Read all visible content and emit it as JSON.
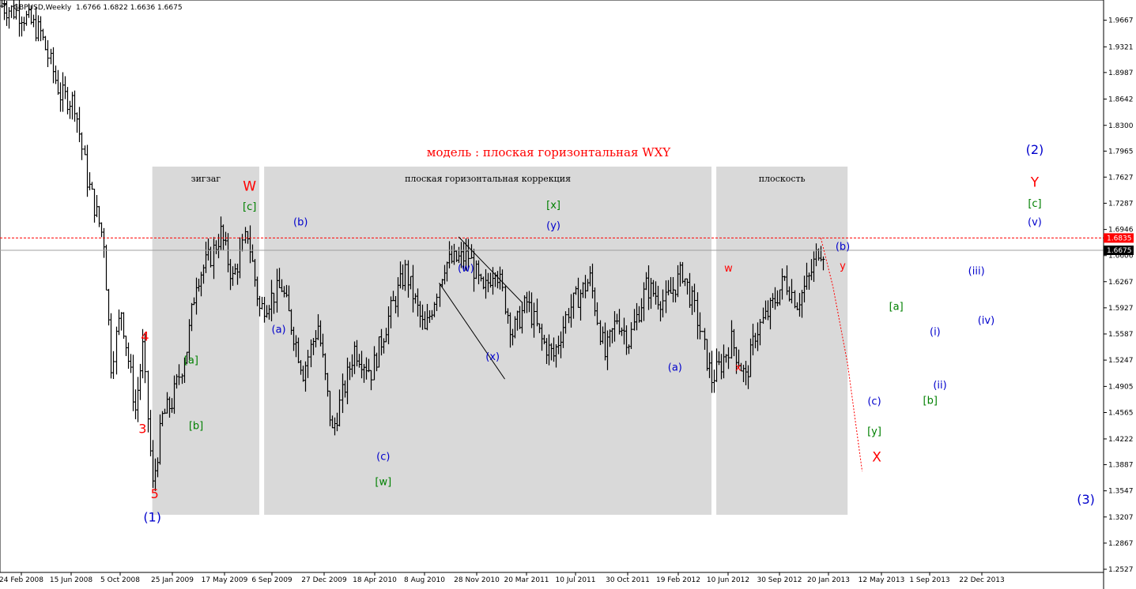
{
  "chart_data": {
    "type": "bar",
    "subtype": "ohlc",
    "title": "модель : плоская горизонтальная WXY",
    "symbol_header": "GBPUSD,Weekly",
    "ohlc_header": "1.6766 1.6822 1.6636 1.6675",
    "ylim": [
      1.2527,
      1.993
    ],
    "y_ticks": [
      "1.9667",
      "1.9321",
      "1.8987",
      "1.8642",
      "1.8300",
      "1.7965",
      "1.7627",
      "1.7287",
      "1.6946",
      "1.6606",
      "1.6267",
      "1.5927",
      "1.5587",
      "1.5247",
      "1.4905",
      "1.4565",
      "1.4222",
      "1.3887",
      "1.3547",
      "1.3207",
      "1.2867",
      "1.2527"
    ],
    "x_ticks": [
      "24 Feb 2008",
      "15 Jun 2008",
      "5 Oct 2008",
      "25 Jan 2009",
      "17 May 2009",
      "6 Sep 2009",
      "27 Dec 2009",
      "18 Apr 2010",
      "8 Aug 2010",
      "28 Nov 2010",
      "20 Mar 2011",
      "10 Jul 2011",
      "30 Oct 2011",
      "19 Feb 2012",
      "10 Jun 2012",
      "30 Sep 2012",
      "20 Jan 2013",
      "12 May 2013",
      "1 Sep 2013",
      "22 Dec 2013"
    ],
    "price_tags": [
      {
        "value": 1.6835,
        "text": "1.6835",
        "color": "#ff0000"
      },
      {
        "value": 1.6675,
        "text": "1.6675",
        "color": "#000000"
      }
    ],
    "pivots": [
      {
        "week": 0,
        "price": 1.985
      },
      {
        "week": 8,
        "price": 1.975
      },
      {
        "week": 16,
        "price": 1.95
      },
      {
        "week": 24,
        "price": 1.87
      },
      {
        "week": 30,
        "price": 1.86
      },
      {
        "week": 35,
        "price": 1.76
      },
      {
        "week": 42,
        "price": 1.68
      },
      {
        "week": 45,
        "price": 1.52
      },
      {
        "week": 49,
        "price": 1.59
      },
      {
        "week": 55,
        "price": 1.46
      },
      {
        "week": 58,
        "price": 1.54
      },
      {
        "week": 62,
        "price": 1.36
      },
      {
        "week": 66,
        "price": 1.45
      },
      {
        "week": 70,
        "price": 1.47
      },
      {
        "week": 76,
        "price": 1.54
      },
      {
        "week": 80,
        "price": 1.63
      },
      {
        "week": 86,
        "price": 1.66
      },
      {
        "week": 90,
        "price": 1.69
      },
      {
        "week": 95,
        "price": 1.63
      },
      {
        "week": 101,
        "price": 1.69
      },
      {
        "week": 106,
        "price": 1.59
      },
      {
        "week": 115,
        "price": 1.62
      },
      {
        "week": 124,
        "price": 1.51
      },
      {
        "week": 130,
        "price": 1.57
      },
      {
        "week": 136,
        "price": 1.43
      },
      {
        "week": 145,
        "price": 1.54
      },
      {
        "week": 152,
        "price": 1.51
      },
      {
        "week": 159,
        "price": 1.58
      },
      {
        "week": 166,
        "price": 1.64
      },
      {
        "week": 174,
        "price": 1.56
      },
      {
        "week": 182,
        "price": 1.65
      },
      {
        "week": 192,
        "price": 1.66
      },
      {
        "week": 198,
        "price": 1.61
      },
      {
        "week": 203,
        "price": 1.65
      },
      {
        "week": 210,
        "price": 1.56
      },
      {
        "week": 216,
        "price": 1.6
      },
      {
        "week": 222,
        "price": 1.55
      },
      {
        "week": 227,
        "price": 1.53
      },
      {
        "week": 233,
        "price": 1.59
      },
      {
        "week": 242,
        "price": 1.63
      },
      {
        "week": 248,
        "price": 1.53
      },
      {
        "week": 253,
        "price": 1.58
      },
      {
        "week": 258,
        "price": 1.55
      },
      {
        "week": 265,
        "price": 1.62
      },
      {
        "week": 273,
        "price": 1.6
      },
      {
        "week": 280,
        "price": 1.64
      },
      {
        "week": 285,
        "price": 1.59
      },
      {
        "week": 292,
        "price": 1.5
      },
      {
        "week": 296,
        "price": 1.52
      },
      {
        "week": 300,
        "price": 1.55
      },
      {
        "week": 306,
        "price": 1.5
      },
      {
        "week": 310,
        "price": 1.56
      },
      {
        "week": 316,
        "price": 1.59
      },
      {
        "week": 322,
        "price": 1.63
      },
      {
        "week": 327,
        "price": 1.6
      },
      {
        "week": 332,
        "price": 1.63
      },
      {
        "week": 336,
        "price": 1.67
      },
      {
        "week": 338,
        "price": 1.6675
      }
    ],
    "zones": [
      {
        "label": "зигзаг",
        "from_week": 62,
        "to_week": 106
      },
      {
        "label": "плоская горизонтальная коррекция",
        "from_week": 108,
        "to_week": 292
      },
      {
        "label": "плоскость",
        "from_week": 294,
        "to_week": 348
      }
    ],
    "projection": [
      {
        "week": 337,
        "price": 1.6835
      },
      {
        "week": 342,
        "price": 1.62
      },
      {
        "week": 348,
        "price": 1.52
      },
      {
        "week": 354,
        "price": 1.38
      }
    ],
    "trendlines": [
      {
        "from_week": 188,
        "from_price": 1.685,
        "to_week": 214,
        "to_price": 1.6
      },
      {
        "from_week": 180,
        "from_price": 1.625,
        "to_week": 207,
        "to_price": 1.5
      }
    ],
    "annotations": [
      {
        "text": "(1)",
        "week": 62,
        "price": 1.315,
        "color": "#0000cc",
        "size": 16
      },
      {
        "text": "5",
        "week": 63,
        "price": 1.345,
        "color": "#ff0000",
        "size": 16
      },
      {
        "text": "3",
        "week": 58,
        "price": 1.43,
        "color": "#ff0000",
        "size": 16
      },
      {
        "text": "4",
        "week": 59,
        "price": 1.55,
        "color": "#ff0000",
        "size": 16
      },
      {
        "text": "[a]",
        "week": 78,
        "price": 1.52,
        "color": "#008000",
        "size": 13
      },
      {
        "text": "[b]",
        "week": 80,
        "price": 1.435,
        "color": "#008000",
        "size": 13
      },
      {
        "text": "W",
        "week": 102,
        "price": 1.745,
        "color": "#ff0000",
        "size": 17
      },
      {
        "text": "[c]",
        "week": 102,
        "price": 1.72,
        "color": "#008000",
        "size": 13
      },
      {
        "text": "(a)",
        "week": 114,
        "price": 1.56,
        "color": "#0000cc",
        "size": 13
      },
      {
        "text": "(b)",
        "week": 123,
        "price": 1.7,
        "color": "#0000cc",
        "size": 13
      },
      {
        "text": "(c)",
        "week": 157,
        "price": 1.395,
        "color": "#0000cc",
        "size": 13
      },
      {
        "text": "[w]",
        "week": 157,
        "price": 1.362,
        "color": "#008000",
        "size": 13
      },
      {
        "text": "(w)",
        "week": 191,
        "price": 1.64,
        "color": "#0000cc",
        "size": 13
      },
      {
        "text": "(x)",
        "week": 202,
        "price": 1.525,
        "color": "#0000cc",
        "size": 13
      },
      {
        "text": "[x]",
        "week": 227,
        "price": 1.722,
        "color": "#008000",
        "size": 13
      },
      {
        "text": "(y)",
        "week": 227,
        "price": 1.695,
        "color": "#0000cc",
        "size": 13
      },
      {
        "text": "(a)",
        "week": 277,
        "price": 1.511,
        "color": "#0000cc",
        "size": 13
      },
      {
        "text": "w",
        "week": 299,
        "price": 1.64,
        "color": "#ff0000",
        "size": 13
      },
      {
        "text": "x",
        "week": 303,
        "price": 1.511,
        "color": "#ff0000",
        "size": 13
      },
      {
        "text": "(b)",
        "week": 346,
        "price": 1.668,
        "color": "#0000cc",
        "size": 13
      },
      {
        "text": "y",
        "week": 346,
        "price": 1.643,
        "color": "#ff0000",
        "size": 13
      },
      {
        "text": "[a]",
        "week": 368,
        "price": 1.59,
        "color": "#008000",
        "size": 13
      },
      {
        "text": "(c)",
        "week": 359,
        "price": 1.467,
        "color": "#0000cc",
        "size": 13
      },
      {
        "text": "[y]",
        "week": 359,
        "price": 1.428,
        "color": "#008000",
        "size": 13
      },
      {
        "text": "X",
        "week": 360,
        "price": 1.393,
        "color": "#ff0000",
        "size": 17
      },
      {
        "text": "(i)",
        "week": 384,
        "price": 1.557,
        "color": "#0000cc",
        "size": 13
      },
      {
        "text": "(ii)",
        "week": 386,
        "price": 1.488,
        "color": "#0000cc",
        "size": 13
      },
      {
        "text": "[b]",
        "week": 382,
        "price": 1.468,
        "color": "#008000",
        "size": 13
      },
      {
        "text": "(iii)",
        "week": 401,
        "price": 1.636,
        "color": "#0000cc",
        "size": 13
      },
      {
        "text": "(iv)",
        "week": 405,
        "price": 1.572,
        "color": "#0000cc",
        "size": 13
      },
      {
        "text": "(v)",
        "week": 425,
        "price": 1.7,
        "color": "#0000cc",
        "size": 13
      },
      {
        "text": "[c]",
        "week": 425,
        "price": 1.724,
        "color": "#008000",
        "size": 13
      },
      {
        "text": "Y",
        "week": 425,
        "price": 1.75,
        "color": "#ff0000",
        "size": 17
      },
      {
        "text": "(2)",
        "week": 425,
        "price": 1.793,
        "color": "#0000cc",
        "size": 16
      },
      {
        "text": "(3)",
        "week": 446,
        "price": 1.338,
        "color": "#0000cc",
        "size": 16
      }
    ],
    "colors": {
      "bars": "#000000",
      "zone_fill": "#d9d9d9",
      "title": "#ff0000",
      "level_line": "#ff0000",
      "current_line": "#a0a0a0",
      "axis": "#000000"
    }
  }
}
